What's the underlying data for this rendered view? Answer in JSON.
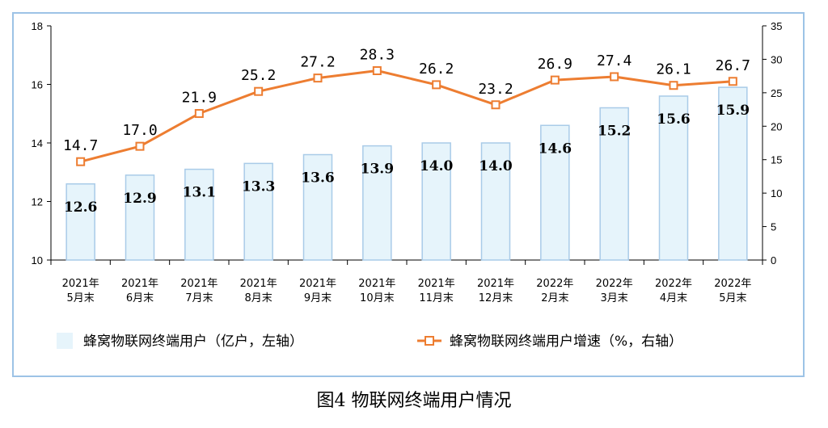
{
  "caption": "图4 物联网终端用户情况",
  "colors": {
    "bar_fill": "#e6f4fb",
    "bar_stroke": "#a9cbe8",
    "line": "#ed7d31",
    "frame": "#9dc3e6"
  },
  "chart_data": {
    "type": "bar+line",
    "categories": [
      [
        "2021年",
        "5月末"
      ],
      [
        "2021年",
        "6月末"
      ],
      [
        "2021年",
        "7月末"
      ],
      [
        "2021年",
        "8月末"
      ],
      [
        "2021年",
        "9月末"
      ],
      [
        "2021年",
        "10月末"
      ],
      [
        "2021年",
        "11月末"
      ],
      [
        "2021年",
        "12月末"
      ],
      [
        "2022年",
        "2月末"
      ],
      [
        "2022年",
        "3月末"
      ],
      [
        "2022年",
        "4月末"
      ],
      [
        "2022年",
        "5月末"
      ]
    ],
    "series": [
      {
        "name": "蜂窝物联网终端用户（亿户，左轴）",
        "type": "bar",
        "axis": "left",
        "values": [
          12.6,
          12.9,
          13.1,
          13.3,
          13.6,
          13.9,
          14.0,
          14.0,
          14.6,
          15.2,
          15.6,
          15.9
        ],
        "labels": [
          "12.6",
          "12.9",
          "13.1",
          "13.3",
          "13.6",
          "13.9",
          "14.0",
          "14.0",
          "14.6",
          "15.2",
          "15.6",
          "15.9"
        ]
      },
      {
        "name": "蜂窝物联网终端用户增速（%，右轴）",
        "type": "line",
        "axis": "right",
        "values": [
          14.7,
          17.0,
          21.9,
          25.2,
          27.2,
          28.3,
          26.2,
          23.2,
          26.9,
          27.4,
          26.1,
          26.7
        ],
        "labels": [
          "14.7",
          "17.0",
          "21.9",
          "25.2",
          "27.2",
          "28.3",
          "26.2",
          "23.2",
          "26.9",
          "27.4",
          "26.1",
          "26.7"
        ]
      }
    ],
    "left_axis": {
      "ylim": [
        10,
        18
      ],
      "ticks": [
        10,
        12,
        14,
        16,
        18
      ]
    },
    "right_axis": {
      "ylim": [
        0,
        35
      ],
      "ticks": [
        0,
        5,
        10,
        15,
        20,
        25,
        30,
        35
      ]
    },
    "legend_position": "bottom",
    "grid": false
  }
}
